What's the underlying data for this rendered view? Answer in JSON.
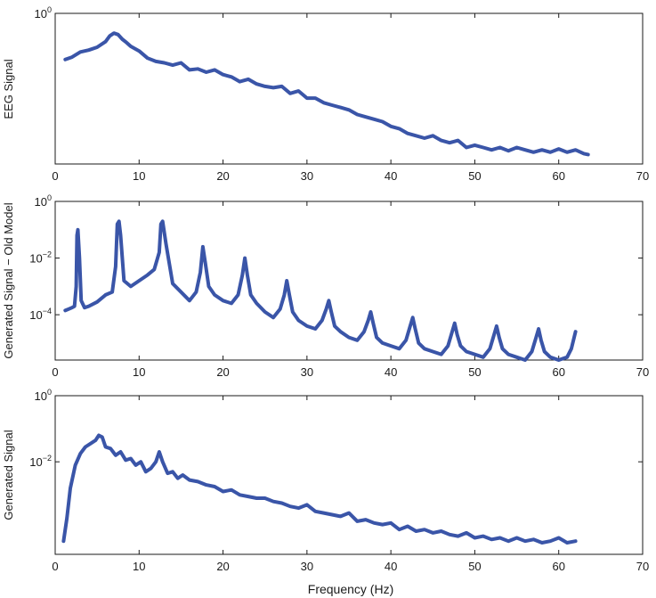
{
  "figure": {
    "xlabel": "Frequency (Hz)"
  },
  "chart_data": [
    {
      "type": "line",
      "ylabel": "EEG Signal",
      "xlim": [
        0,
        70
      ],
      "ylim_log": [
        -3.2,
        0
      ],
      "xticks": [
        0,
        10,
        20,
        30,
        40,
        50,
        60,
        70
      ],
      "yticks": [
        {
          "exp": 0,
          "label": "10",
          "sup": "0"
        }
      ],
      "log_scale_y": true,
      "grid": false,
      "color": "#3a55a8",
      "series": [
        {
          "x": [
            1.2,
            2.0,
            3.0,
            4.0,
            5.0,
            6.0,
            6.5,
            7.0,
            7.5,
            8.0,
            8.5,
            9.0,
            10.0,
            11.0,
            12.0,
            13.0,
            14.0,
            15.0,
            16.0,
            17.0,
            18.0,
            19.0,
            20.0,
            21.0,
            22.0,
            23.0,
            24.0,
            25.0,
            26.0,
            27.0,
            28.0,
            29.0,
            30.0,
            31.0,
            32.0,
            33.0,
            34.0,
            35.0,
            36.0,
            37.0,
            38.0,
            39.0,
            40.0,
            41.0,
            42.0,
            43.0,
            44.0,
            45.0,
            46.0,
            47.0,
            48.0,
            49.0,
            50.0,
            51.0,
            52.0,
            53.0,
            54.0,
            55.0,
            56.0,
            57.0,
            58.0,
            59.0,
            60.0,
            61.0,
            62.0,
            63.0,
            63.5
          ],
          "y": [
            -0.98,
            -0.93,
            -0.82,
            -0.78,
            -0.72,
            -0.6,
            -0.48,
            -0.42,
            -0.45,
            -0.55,
            -0.62,
            -0.7,
            -0.8,
            -0.95,
            -1.02,
            -1.05,
            -1.1,
            -1.05,
            -1.2,
            -1.18,
            -1.25,
            -1.2,
            -1.3,
            -1.35,
            -1.45,
            -1.4,
            -1.5,
            -1.55,
            -1.58,
            -1.55,
            -1.7,
            -1.65,
            -1.8,
            -1.8,
            -1.9,
            -1.95,
            -2.0,
            -2.05,
            -2.15,
            -2.2,
            -2.25,
            -2.3,
            -2.4,
            -2.45,
            -2.55,
            -2.6,
            -2.65,
            -2.6,
            -2.7,
            -2.75,
            -2.7,
            -2.85,
            -2.8,
            -2.85,
            -2.9,
            -2.85,
            -2.92,
            -2.85,
            -2.9,
            -2.95,
            -2.9,
            -2.95,
            -2.88,
            -2.95,
            -2.9,
            -2.98,
            -3.0
          ]
        }
      ]
    },
    {
      "type": "line",
      "ylabel": "Generated Signal − Old Model",
      "xlim": [
        0,
        70
      ],
      "ylim_log": [
        -5.6,
        0
      ],
      "xticks": [
        0,
        10,
        20,
        30,
        40,
        50,
        60,
        70
      ],
      "yticks": [
        {
          "exp": 0,
          "label": "10",
          "sup": "0"
        },
        {
          "exp": -2,
          "label": "10",
          "sup": "−2"
        },
        {
          "exp": -4,
          "label": "10",
          "sup": "−4"
        }
      ],
      "log_scale_y": true,
      "grid": false,
      "color": "#3a55a8",
      "series": [
        {
          "x": [
            1.2,
            1.6,
            2.0,
            2.3,
            2.5,
            2.6,
            2.7,
            2.9,
            3.1,
            3.5,
            4.0,
            5.0,
            6.0,
            6.8,
            7.2,
            7.4,
            7.6,
            7.8,
            8.2,
            9.0,
            10.0,
            11.0,
            11.8,
            12.4,
            12.6,
            12.8,
            13.2,
            14.0,
            15.0,
            16.0,
            16.8,
            17.3,
            17.6,
            17.9,
            18.3,
            19.0,
            20.0,
            21.0,
            21.8,
            22.3,
            22.6,
            22.9,
            23.3,
            24.0,
            25.0,
            26.0,
            26.8,
            27.3,
            27.6,
            27.9,
            28.3,
            29.0,
            30.0,
            31.0,
            31.8,
            32.3,
            32.6,
            32.9,
            33.3,
            34.0,
            35.0,
            36.0,
            36.8,
            37.3,
            37.6,
            37.9,
            38.3,
            39.0,
            40.0,
            41.0,
            41.8,
            42.3,
            42.6,
            42.9,
            43.3,
            44.0,
            45.0,
            46.0,
            46.8,
            47.3,
            47.6,
            47.9,
            48.3,
            49.0,
            50.0,
            51.0,
            51.8,
            52.3,
            52.6,
            52.9,
            53.3,
            54.0,
            55.0,
            56.0,
            56.8,
            57.3,
            57.6,
            57.9,
            58.3,
            59.0,
            60.0,
            61.0,
            61.5,
            62.0
          ],
          "y": [
            -3.85,
            -3.8,
            -3.75,
            -3.7,
            -3.0,
            -1.2,
            -1.0,
            -2.0,
            -3.5,
            -3.75,
            -3.7,
            -3.55,
            -3.3,
            -3.2,
            -2.3,
            -0.8,
            -0.7,
            -1.2,
            -2.8,
            -3.0,
            -2.8,
            -2.6,
            -2.4,
            -1.8,
            -0.8,
            -0.7,
            -1.5,
            -2.9,
            -3.2,
            -3.5,
            -3.2,
            -2.5,
            -1.6,
            -2.2,
            -3.0,
            -3.3,
            -3.5,
            -3.6,
            -3.3,
            -2.6,
            -2.0,
            -2.6,
            -3.3,
            -3.6,
            -3.9,
            -4.1,
            -3.8,
            -3.3,
            -2.8,
            -3.3,
            -3.9,
            -4.2,
            -4.4,
            -4.5,
            -4.2,
            -3.8,
            -3.5,
            -3.9,
            -4.4,
            -4.6,
            -4.8,
            -4.9,
            -4.6,
            -4.2,
            -3.9,
            -4.3,
            -4.8,
            -5.0,
            -5.1,
            -5.2,
            -4.9,
            -4.4,
            -4.1,
            -4.5,
            -5.0,
            -5.2,
            -5.3,
            -5.4,
            -5.1,
            -4.6,
            -4.3,
            -4.7,
            -5.1,
            -5.3,
            -5.4,
            -5.5,
            -5.2,
            -4.7,
            -4.4,
            -4.8,
            -5.2,
            -5.4,
            -5.5,
            -5.6,
            -5.3,
            -4.8,
            -4.5,
            -4.9,
            -5.3,
            -5.5,
            -5.6,
            -5.5,
            -5.2,
            -4.6
          ]
        }
      ]
    },
    {
      "type": "line",
      "ylabel": "Generated Signal",
      "xlim": [
        0,
        70
      ],
      "ylim_log": [
        -4.8,
        0
      ],
      "xticks": [
        0,
        10,
        20,
        30,
        40,
        50,
        60,
        70
      ],
      "xticklabels": [
        "0",
        "10",
        "20",
        "30",
        "40",
        "50",
        "60",
        "70"
      ],
      "yticks": [
        {
          "exp": 0,
          "label": "10",
          "sup": "0"
        },
        {
          "exp": -2,
          "label": "10",
          "sup": "−2"
        }
      ],
      "log_scale_y": true,
      "grid": false,
      "color": "#3a55a8",
      "series": [
        {
          "x": [
            1.0,
            1.4,
            1.8,
            2.4,
            3.0,
            3.6,
            4.2,
            4.8,
            5.2,
            5.6,
            6.0,
            6.6,
            7.2,
            7.8,
            8.4,
            9.0,
            9.6,
            10.2,
            10.8,
            11.4,
            12.0,
            12.4,
            12.8,
            13.4,
            14.0,
            14.6,
            15.2,
            16.0,
            17.0,
            18.0,
            19.0,
            20.0,
            21.0,
            22.0,
            23.0,
            24.0,
            25.0,
            26.0,
            27.0,
            28.0,
            29.0,
            30.0,
            31.0,
            32.0,
            33.0,
            34.0,
            35.0,
            36.0,
            37.0,
            38.0,
            39.0,
            40.0,
            41.0,
            42.0,
            43.0,
            44.0,
            45.0,
            46.0,
            47.0,
            48.0,
            49.0,
            50.0,
            51.0,
            52.0,
            53.0,
            54.0,
            55.0,
            56.0,
            57.0,
            58.0,
            59.0,
            60.0,
            61.0,
            62.0
          ],
          "y": [
            -4.4,
            -3.7,
            -2.8,
            -2.1,
            -1.75,
            -1.55,
            -1.45,
            -1.35,
            -1.2,
            -1.25,
            -1.55,
            -1.6,
            -1.8,
            -1.7,
            -1.95,
            -1.9,
            -2.1,
            -2.0,
            -2.3,
            -2.2,
            -2.0,
            -1.7,
            -2.0,
            -2.35,
            -2.3,
            -2.5,
            -2.4,
            -2.55,
            -2.6,
            -2.7,
            -2.75,
            -2.9,
            -2.85,
            -3.0,
            -3.05,
            -3.1,
            -3.1,
            -3.2,
            -3.25,
            -3.35,
            -3.4,
            -3.3,
            -3.5,
            -3.55,
            -3.6,
            -3.65,
            -3.55,
            -3.8,
            -3.75,
            -3.85,
            -3.9,
            -3.85,
            -4.05,
            -3.95,
            -4.1,
            -4.05,
            -4.15,
            -4.1,
            -4.2,
            -4.25,
            -4.15,
            -4.3,
            -4.25,
            -4.35,
            -4.3,
            -4.4,
            -4.3,
            -4.4,
            -4.35,
            -4.45,
            -4.4,
            -4.3,
            -4.45,
            -4.4
          ]
        }
      ]
    }
  ]
}
